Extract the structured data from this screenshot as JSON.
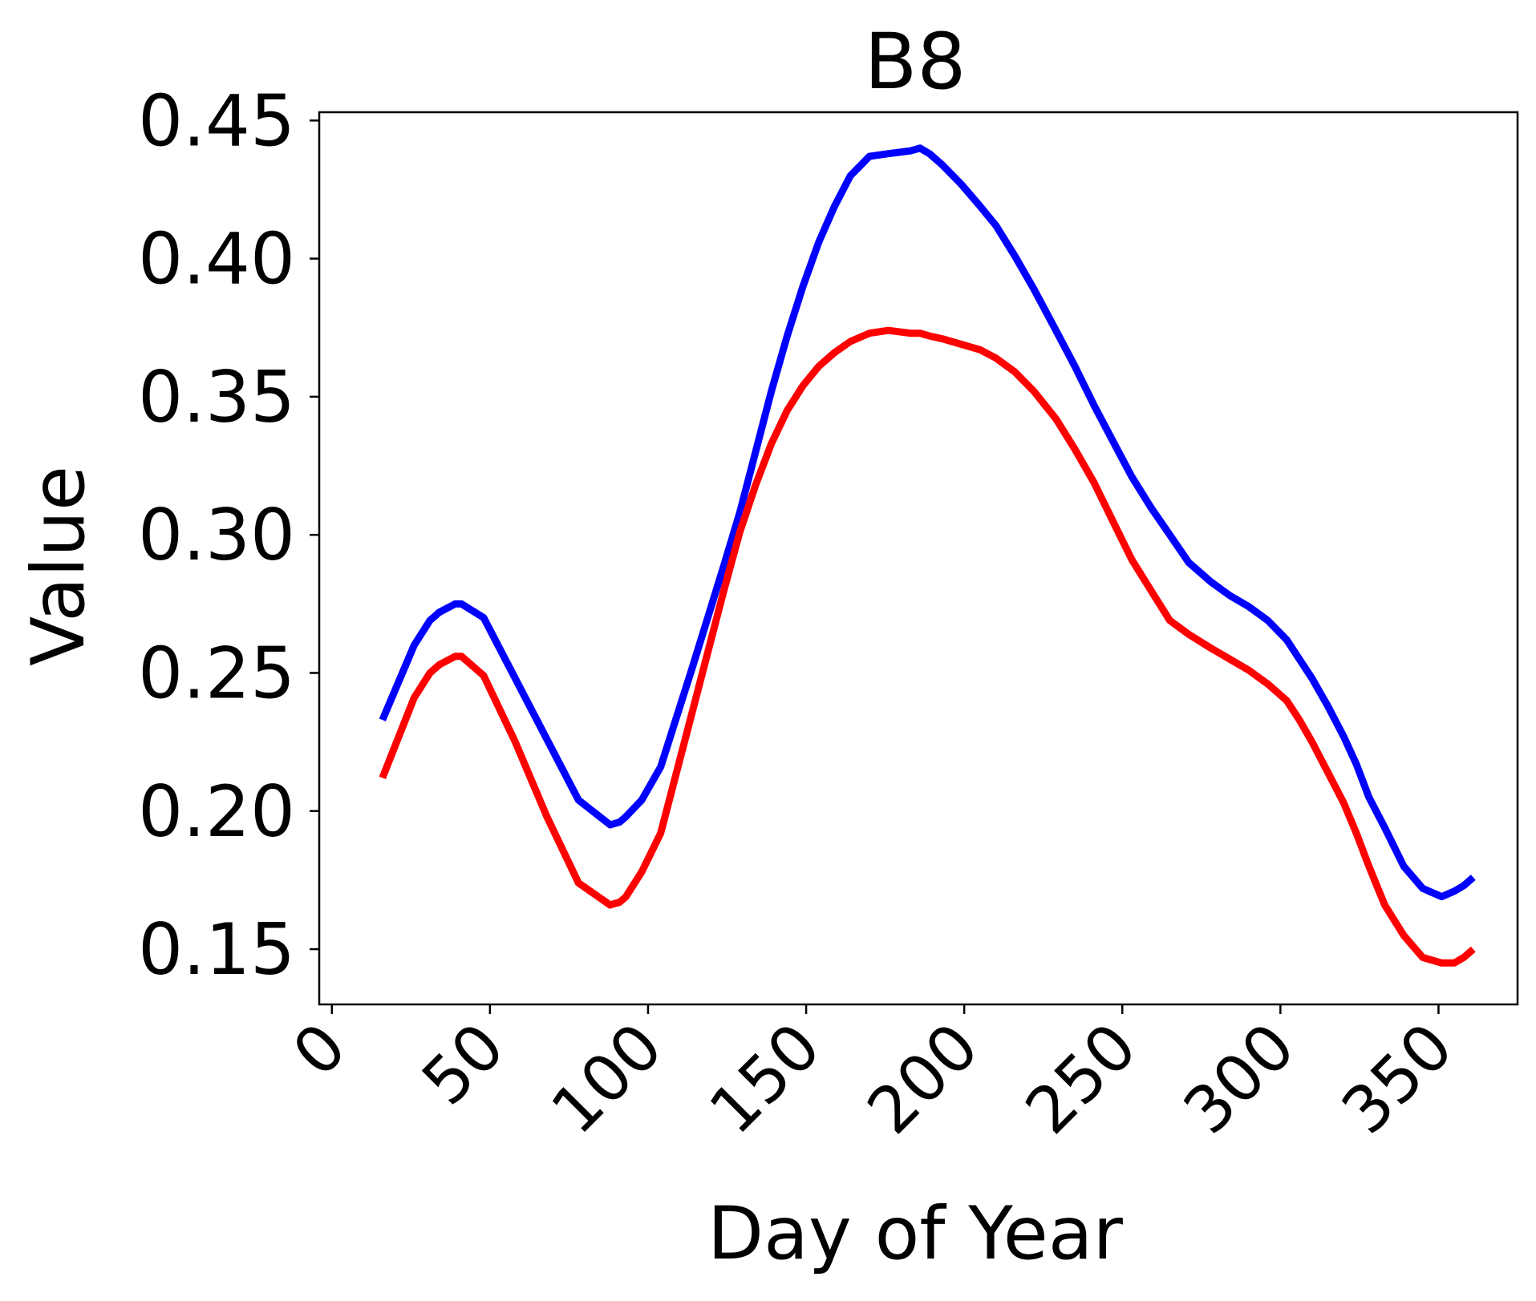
{
  "chart_data": {
    "type": "line",
    "title": "B8",
    "xlabel": "Day of Year",
    "ylabel": "Value",
    "xlim": [
      -4,
      375
    ],
    "ylim": [
      0.13,
      0.453
    ],
    "xticks": [
      0,
      50,
      100,
      150,
      200,
      250,
      300,
      350
    ],
    "xtick_labels": [
      "0",
      "50",
      "100",
      "150",
      "200",
      "250",
      "300",
      "350"
    ],
    "yticks": [
      0.15,
      0.2,
      0.25,
      0.3,
      0.35,
      0.4,
      0.45
    ],
    "ytick_labels": [
      "0.15",
      "0.20",
      "0.25",
      "0.30",
      "0.35",
      "0.40",
      "0.45"
    ],
    "grid": false,
    "legend": false,
    "series": [
      {
        "color": "#0000ff",
        "x": [
          16,
          26,
          31,
          34,
          39,
          41,
          48,
          58,
          68,
          78,
          88,
          91,
          93,
          98,
          104,
          114,
          124,
          129,
          134,
          139,
          144,
          149,
          154,
          159,
          164,
          170,
          176,
          183,
          186,
          189,
          193,
          199,
          205,
          210,
          216,
          222,
          229,
          235,
          241,
          247,
          253,
          259,
          265,
          271,
          278,
          284,
          290,
          296,
          302,
          306,
          310,
          315,
          320,
          324,
          328,
          333,
          339,
          345,
          351,
          355,
          358,
          361
        ],
        "y": [
          0.233,
          0.26,
          0.269,
          0.272,
          0.275,
          0.275,
          0.27,
          0.248,
          0.226,
          0.204,
          0.195,
          0.196,
          0.198,
          0.204,
          0.216,
          0.252,
          0.289,
          0.308,
          0.33,
          0.352,
          0.372,
          0.39,
          0.406,
          0.419,
          0.43,
          0.437,
          0.438,
          0.439,
          0.44,
          0.438,
          0.434,
          0.427,
          0.419,
          0.412,
          0.401,
          0.389,
          0.374,
          0.361,
          0.347,
          0.334,
          0.321,
          0.31,
          0.3,
          0.29,
          0.283,
          0.278,
          0.274,
          0.269,
          0.262,
          0.255,
          0.248,
          0.238,
          0.227,
          0.217,
          0.205,
          0.194,
          0.18,
          0.172,
          0.169,
          0.171,
          0.173,
          0.176
        ]
      },
      {
        "color": "#ff0000",
        "x": [
          16,
          26,
          31,
          34,
          39,
          41,
          48,
          58,
          68,
          78,
          88,
          91,
          93,
          98,
          104,
          114,
          124,
          129,
          134,
          139,
          144,
          149,
          154,
          159,
          164,
          170,
          176,
          183,
          186,
          189,
          193,
          199,
          205,
          210,
          216,
          222,
          229,
          235,
          241,
          247,
          253,
          259,
          265,
          271,
          278,
          284,
          290,
          296,
          302,
          306,
          310,
          315,
          320,
          324,
          328,
          333,
          339,
          345,
          351,
          355,
          358,
          361
        ],
        "y": [
          0.212,
          0.241,
          0.25,
          0.253,
          0.256,
          0.256,
          0.249,
          0.225,
          0.198,
          0.174,
          0.166,
          0.167,
          0.169,
          0.178,
          0.192,
          0.236,
          0.28,
          0.301,
          0.318,
          0.333,
          0.345,
          0.354,
          0.361,
          0.366,
          0.37,
          0.373,
          0.374,
          0.373,
          0.373,
          0.372,
          0.371,
          0.369,
          0.367,
          0.364,
          0.359,
          0.352,
          0.342,
          0.331,
          0.319,
          0.305,
          0.291,
          0.28,
          0.269,
          0.264,
          0.259,
          0.255,
          0.251,
          0.246,
          0.24,
          0.233,
          0.225,
          0.214,
          0.203,
          0.192,
          0.18,
          0.166,
          0.155,
          0.147,
          0.145,
          0.145,
          0.147,
          0.15
        ]
      }
    ]
  }
}
